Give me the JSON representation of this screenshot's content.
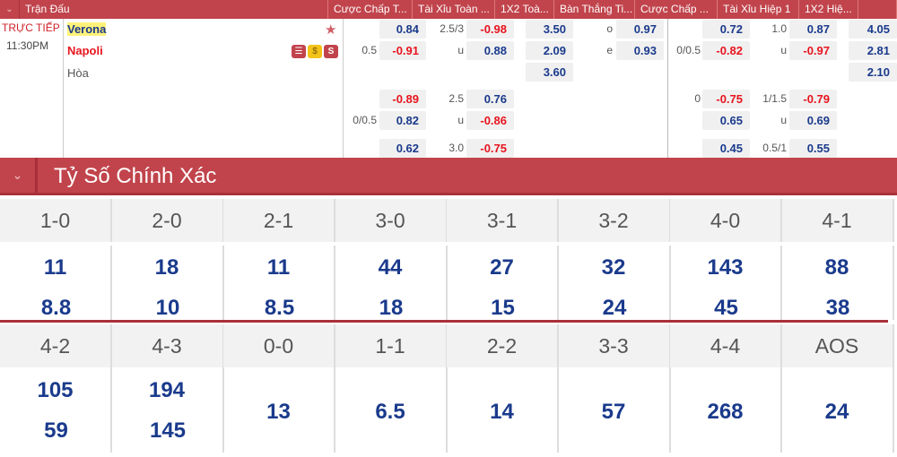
{
  "header": {
    "columns": [
      "Trận Đấu",
      "Cược Chấp T...",
      "Tài Xỉu Toàn ...",
      "1X2 Toà...",
      "Bàn Thắng Ti...",
      "Cược Chấp ...",
      "Tài Xỉu Hiệp 1",
      "1X2 Hiệ...",
      ""
    ]
  },
  "match": {
    "status": "TRỰC TIẾP",
    "time": "11:30PM",
    "home": "Verona",
    "away": "Napoli",
    "draw": "Hòa",
    "icons": [
      "favorite-star-icon",
      "stats-icon",
      "money-icon",
      "streaming-icon"
    ]
  },
  "odds_rows": [
    {
      "hdp": "",
      "hdp_v": "0.84",
      "ou": "2.5/3",
      "ou_v": "-0.98",
      "x12": "3.50",
      "oe": "o",
      "oe_v": "0.97",
      "h1hdp": "",
      "h1hdp_v": "0.72",
      "h1ou": "1.0",
      "h1ou_v": "0.87",
      "h1x12": "4.05"
    },
    {
      "hdp": "0.5",
      "hdp_v": "-0.91",
      "ou": "u",
      "ou_v": "0.88",
      "x12": "2.09",
      "oe": "e",
      "oe_v": "0.93",
      "h1hdp": "0/0.5",
      "h1hdp_v": "-0.82",
      "h1ou": "u",
      "h1ou_v": "-0.97",
      "h1x12": "2.81"
    },
    {
      "hdp": "",
      "hdp_v": "",
      "ou": "",
      "ou_v": "",
      "x12": "3.60",
      "oe": "",
      "oe_v": "",
      "h1hdp": "",
      "h1hdp_v": "",
      "h1ou": "",
      "h1ou_v": "",
      "h1x12": "2.10"
    },
    {
      "hdp": "",
      "hdp_v": "-0.89",
      "ou": "2.5",
      "ou_v": "0.76",
      "x12": "",
      "oe": "",
      "oe_v": "",
      "h1hdp": "0",
      "h1hdp_v": "-0.75",
      "h1ou": "1/1.5",
      "h1ou_v": "-0.79",
      "h1x12": ""
    },
    {
      "hdp": "0/0.5",
      "hdp_v": "0.82",
      "ou": "u",
      "ou_v": "-0.86",
      "x12": "",
      "oe": "",
      "oe_v": "",
      "h1hdp": "",
      "h1hdp_v": "0.65",
      "h1ou": "u",
      "h1ou_v": "0.69",
      "h1x12": ""
    },
    {
      "hdp": "",
      "hdp_v": "0.62",
      "ou": "3.0",
      "ou_v": "-0.75",
      "x12": "",
      "oe": "",
      "oe_v": "",
      "h1hdp": "",
      "h1hdp_v": "0.45",
      "h1ou": "0.5/1",
      "h1ou_v": "0.55",
      "h1x12": ""
    }
  ],
  "correct_score": {
    "title": "Tỷ Số Chính Xác",
    "row1": [
      {
        "score": "1-0",
        "home": "11",
        "away": "8.8"
      },
      {
        "score": "2-0",
        "home": "18",
        "away": "10"
      },
      {
        "score": "2-1",
        "home": "11",
        "away": "8.5"
      },
      {
        "score": "3-0",
        "home": "44",
        "away": "18"
      },
      {
        "score": "3-1",
        "home": "27",
        "away": "15"
      },
      {
        "score": "3-2",
        "home": "32",
        "away": "24"
      },
      {
        "score": "4-0",
        "home": "143",
        "away": "45"
      },
      {
        "score": "4-1",
        "home": "88",
        "away": "38"
      }
    ],
    "row2": [
      {
        "score": "4-2",
        "home": "105",
        "away": "59"
      },
      {
        "score": "4-3",
        "home": "194",
        "away": "145"
      },
      {
        "score": "0-0",
        "draw": "13"
      },
      {
        "score": "1-1",
        "draw": "6.5"
      },
      {
        "score": "2-2",
        "draw": "14"
      },
      {
        "score": "3-3",
        "draw": "57"
      },
      {
        "score": "4-4",
        "draw": "268"
      },
      {
        "score": "AOS",
        "draw": "24"
      }
    ]
  },
  "colors": {
    "header": "#c1444c",
    "odds_blue": "#1a3a8c",
    "odds_red": "#e8141e"
  }
}
